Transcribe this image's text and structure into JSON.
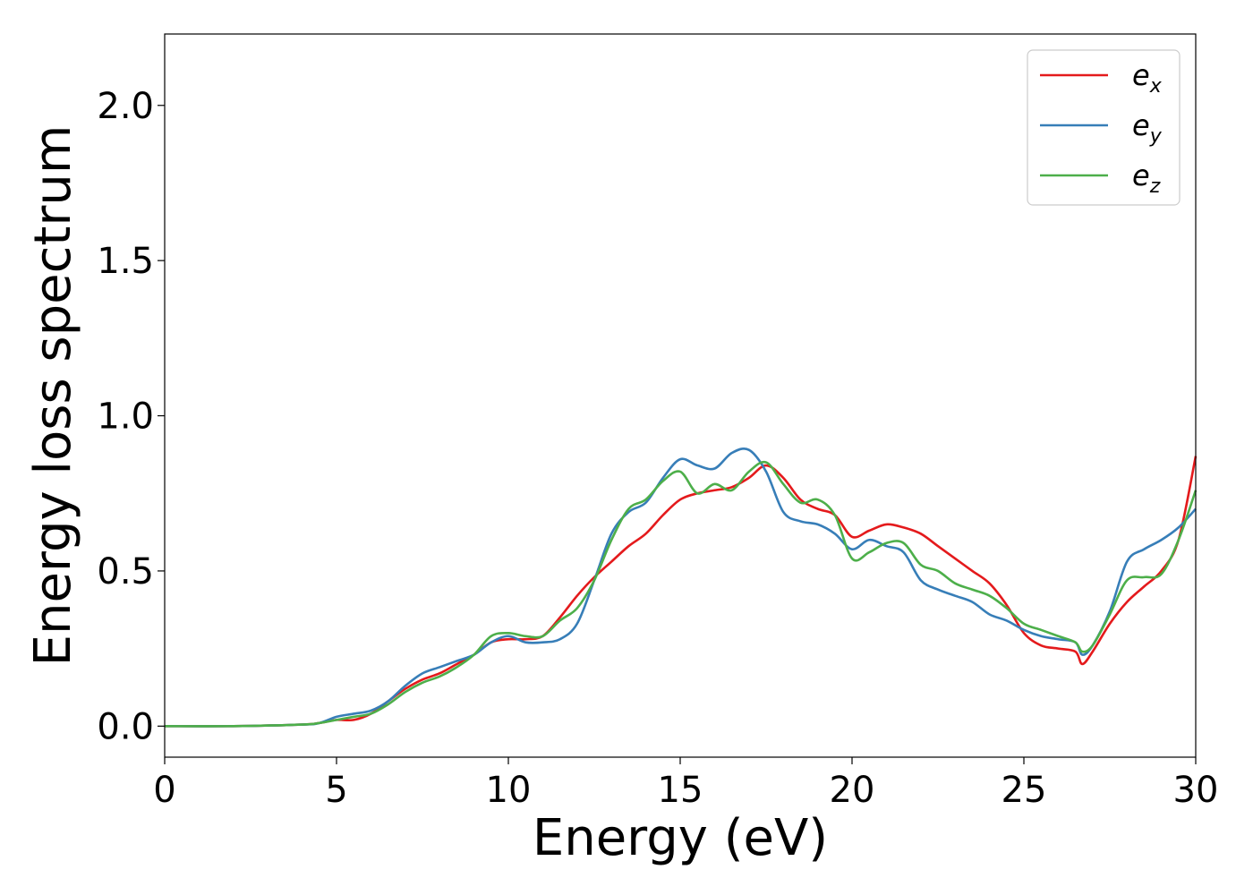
{
  "chart_data": {
    "type": "line",
    "xlabel": "Energy (eV)",
    "ylabel": "Energy loss spectrum",
    "xlim": [
      0,
      30
    ],
    "ylim": [
      -0.1,
      2.23
    ],
    "xticks": [
      0,
      5,
      10,
      15,
      20,
      25,
      30
    ],
    "xtick_labels": [
      "0",
      "5",
      "10",
      "15",
      "20",
      "25",
      "30"
    ],
    "yticks": [
      0.0,
      0.5,
      1.0,
      1.5,
      2.0
    ],
    "ytick_labels": [
      "0.0",
      "0.5",
      "1.0",
      "1.5",
      "2.0"
    ],
    "grid": false,
    "legend_position": "top-right",
    "series": [
      {
        "name": "e_x",
        "label_main": "e",
        "label_sub": "x",
        "color": "#e41a1c",
        "x": [
          0,
          2,
          4,
          4.5,
          5,
          5.5,
          6,
          6.5,
          7,
          7.5,
          8,
          8.5,
          9,
          9.5,
          10,
          10.5,
          11,
          11.5,
          12,
          12.5,
          13,
          13.5,
          14,
          14.5,
          15,
          15.5,
          16,
          16.5,
          17,
          17.5,
          18,
          18.5,
          19,
          19.5,
          20,
          20.5,
          21,
          21.5,
          22,
          22.5,
          23,
          23.5,
          24,
          24.5,
          25,
          25.5,
          26,
          26.5,
          26.7,
          27,
          27.5,
          28,
          28.5,
          29,
          29.5,
          30
        ],
        "y": [
          0.0,
          0.0,
          0.005,
          0.01,
          0.02,
          0.02,
          0.04,
          0.08,
          0.12,
          0.15,
          0.17,
          0.2,
          0.23,
          0.27,
          0.28,
          0.28,
          0.29,
          0.35,
          0.42,
          0.48,
          0.53,
          0.58,
          0.62,
          0.68,
          0.73,
          0.75,
          0.76,
          0.77,
          0.8,
          0.84,
          0.8,
          0.73,
          0.7,
          0.68,
          0.61,
          0.63,
          0.65,
          0.64,
          0.62,
          0.58,
          0.54,
          0.5,
          0.46,
          0.39,
          0.3,
          0.26,
          0.25,
          0.24,
          0.2,
          0.24,
          0.33,
          0.4,
          0.45,
          0.5,
          0.6,
          0.87
        ]
      },
      {
        "name": "e_y",
        "label_main": "e",
        "label_sub": "y",
        "color": "#377eb8",
        "x": [
          0,
          2,
          4,
          4.5,
          5,
          5.5,
          6,
          6.5,
          7,
          7.5,
          8,
          8.5,
          9,
          9.5,
          10,
          10.5,
          11,
          11.5,
          12,
          12.5,
          13,
          13.5,
          14,
          14.5,
          15,
          15.5,
          16,
          16.5,
          17,
          17.5,
          18,
          18.5,
          19,
          19.5,
          20,
          20.5,
          21,
          21.5,
          22,
          22.5,
          23,
          23.5,
          24,
          24.5,
          25,
          25.5,
          26,
          26.5,
          26.7,
          27,
          27.5,
          28,
          28.5,
          29,
          29.5,
          30
        ],
        "y": [
          0.0,
          0.0,
          0.005,
          0.01,
          0.03,
          0.04,
          0.05,
          0.08,
          0.13,
          0.17,
          0.19,
          0.21,
          0.23,
          0.27,
          0.29,
          0.27,
          0.27,
          0.28,
          0.33,
          0.47,
          0.62,
          0.69,
          0.72,
          0.8,
          0.86,
          0.84,
          0.83,
          0.88,
          0.89,
          0.82,
          0.69,
          0.66,
          0.65,
          0.62,
          0.57,
          0.6,
          0.58,
          0.56,
          0.47,
          0.44,
          0.42,
          0.4,
          0.36,
          0.34,
          0.31,
          0.29,
          0.28,
          0.27,
          0.23,
          0.26,
          0.37,
          0.53,
          0.57,
          0.6,
          0.64,
          0.7
        ]
      },
      {
        "name": "e_z",
        "label_main": "e",
        "label_sub": "z",
        "color": "#4daf4a",
        "x": [
          0,
          2,
          4,
          4.5,
          5,
          5.5,
          6,
          6.5,
          7,
          7.5,
          8,
          8.5,
          9,
          9.5,
          10,
          10.5,
          11,
          11.5,
          12,
          12.5,
          13,
          13.5,
          14,
          14.5,
          15,
          15.5,
          16,
          16.5,
          17,
          17.5,
          18,
          18.5,
          19,
          19.5,
          20,
          20.5,
          21,
          21.5,
          22,
          22.5,
          23,
          23.5,
          24,
          24.5,
          25,
          25.5,
          26,
          26.5,
          26.7,
          27,
          27.5,
          28,
          28.5,
          29,
          29.5,
          30
        ],
        "y": [
          0.0,
          0.0,
          0.005,
          0.01,
          0.02,
          0.03,
          0.04,
          0.07,
          0.11,
          0.14,
          0.16,
          0.19,
          0.23,
          0.29,
          0.3,
          0.29,
          0.29,
          0.34,
          0.38,
          0.47,
          0.6,
          0.7,
          0.73,
          0.79,
          0.82,
          0.75,
          0.78,
          0.76,
          0.82,
          0.85,
          0.78,
          0.72,
          0.73,
          0.68,
          0.54,
          0.56,
          0.59,
          0.59,
          0.52,
          0.5,
          0.46,
          0.44,
          0.42,
          0.38,
          0.33,
          0.31,
          0.29,
          0.27,
          0.24,
          0.26,
          0.36,
          0.47,
          0.48,
          0.49,
          0.6,
          0.76
        ]
      }
    ]
  }
}
